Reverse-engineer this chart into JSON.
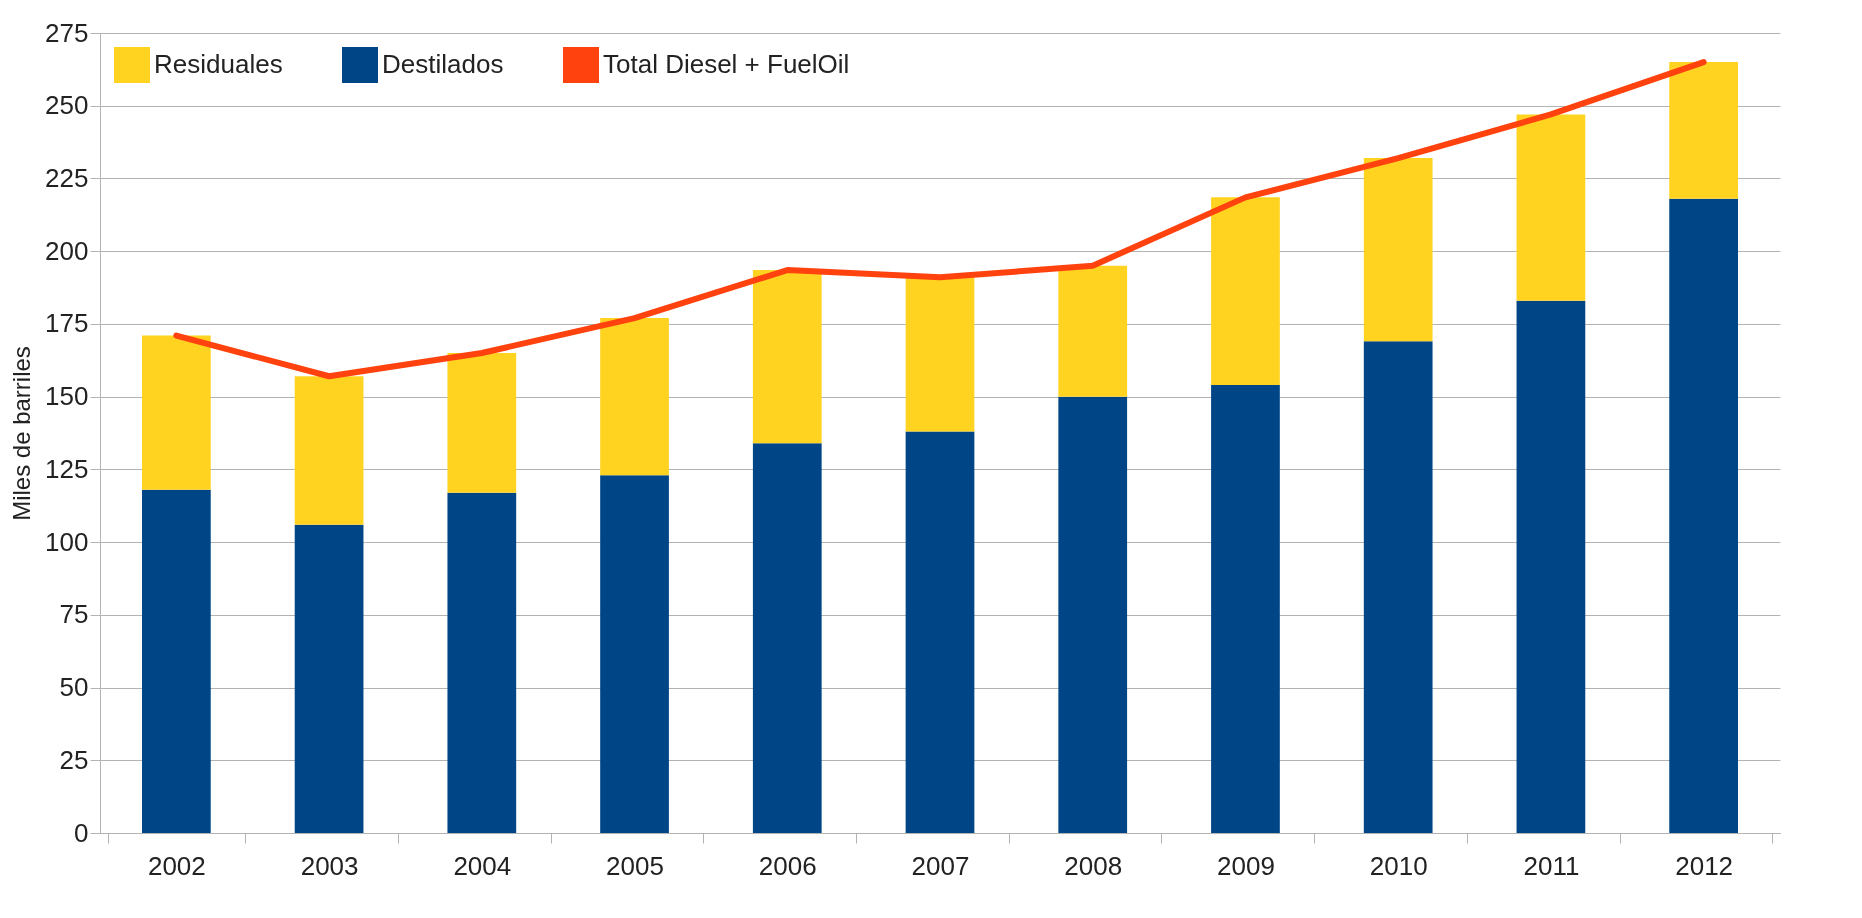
{
  "chart_data": {
    "type": "bar",
    "stacked": true,
    "ylabel": "Miles de barriles",
    "categories": [
      "2002",
      "2003",
      "2004",
      "2005",
      "2006",
      "2007",
      "2008",
      "2009",
      "2010",
      "2011",
      "2012"
    ],
    "series": [
      {
        "name": "Destilados",
        "color": "#004586",
        "values": [
          118,
          106,
          117,
          123,
          134,
          138,
          150,
          154,
          169,
          183,
          218
        ]
      },
      {
        "name": "Residuales",
        "color": "#ffd320",
        "values": [
          53,
          51,
          48,
          54,
          59.5,
          53,
          45,
          64.5,
          63,
          64,
          47
        ]
      },
      {
        "name": "Total Diesel + FuelOil",
        "type": "line",
        "color": "#ff420e",
        "values": [
          171,
          157,
          165,
          177,
          193.5,
          191,
          195,
          218.5,
          232,
          247,
          265
        ]
      }
    ],
    "ylim": [
      0,
      275
    ],
    "yticks": [
      0,
      25,
      50,
      75,
      100,
      125,
      150,
      175,
      200,
      225,
      250,
      275
    ],
    "grid": "y",
    "legend": "top left"
  }
}
